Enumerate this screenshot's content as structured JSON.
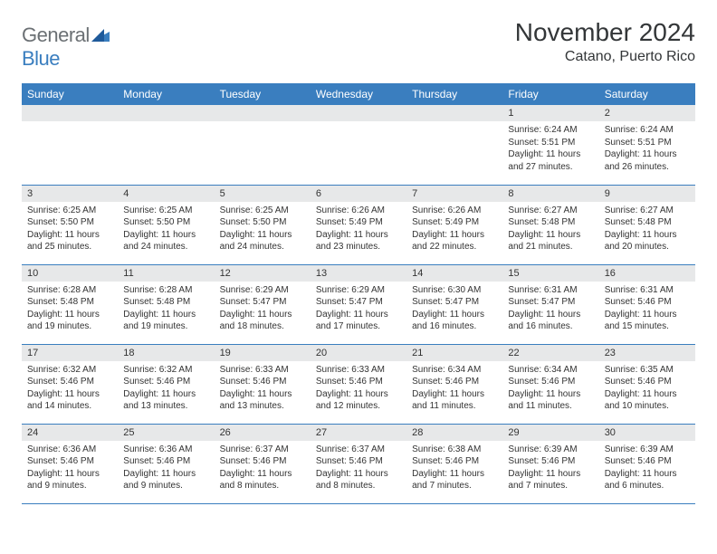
{
  "logo": {
    "part1": "General",
    "part2": "Blue"
  },
  "title": "November 2024",
  "location": "Catano, Puerto Rico",
  "colors": {
    "header_bg": "#3a7ebf",
    "header_fg": "#ffffff",
    "daynum_bg": "#e7e8e9",
    "border": "#3a7ebf",
    "logo_gray": "#6b7074",
    "logo_blue": "#3a7ebf"
  },
  "weekdays": [
    "Sunday",
    "Monday",
    "Tuesday",
    "Wednesday",
    "Thursday",
    "Friday",
    "Saturday"
  ],
  "weeks": [
    [
      {
        "n": "",
        "sr": "",
        "ss": "",
        "dl": ""
      },
      {
        "n": "",
        "sr": "",
        "ss": "",
        "dl": ""
      },
      {
        "n": "",
        "sr": "",
        "ss": "",
        "dl": ""
      },
      {
        "n": "",
        "sr": "",
        "ss": "",
        "dl": ""
      },
      {
        "n": "",
        "sr": "",
        "ss": "",
        "dl": ""
      },
      {
        "n": "1",
        "sr": "Sunrise: 6:24 AM",
        "ss": "Sunset: 5:51 PM",
        "dl": "Daylight: 11 hours and 27 minutes."
      },
      {
        "n": "2",
        "sr": "Sunrise: 6:24 AM",
        "ss": "Sunset: 5:51 PM",
        "dl": "Daylight: 11 hours and 26 minutes."
      }
    ],
    [
      {
        "n": "3",
        "sr": "Sunrise: 6:25 AM",
        "ss": "Sunset: 5:50 PM",
        "dl": "Daylight: 11 hours and 25 minutes."
      },
      {
        "n": "4",
        "sr": "Sunrise: 6:25 AM",
        "ss": "Sunset: 5:50 PM",
        "dl": "Daylight: 11 hours and 24 minutes."
      },
      {
        "n": "5",
        "sr": "Sunrise: 6:25 AM",
        "ss": "Sunset: 5:50 PM",
        "dl": "Daylight: 11 hours and 24 minutes."
      },
      {
        "n": "6",
        "sr": "Sunrise: 6:26 AM",
        "ss": "Sunset: 5:49 PM",
        "dl": "Daylight: 11 hours and 23 minutes."
      },
      {
        "n": "7",
        "sr": "Sunrise: 6:26 AM",
        "ss": "Sunset: 5:49 PM",
        "dl": "Daylight: 11 hours and 22 minutes."
      },
      {
        "n": "8",
        "sr": "Sunrise: 6:27 AM",
        "ss": "Sunset: 5:48 PM",
        "dl": "Daylight: 11 hours and 21 minutes."
      },
      {
        "n": "9",
        "sr": "Sunrise: 6:27 AM",
        "ss": "Sunset: 5:48 PM",
        "dl": "Daylight: 11 hours and 20 minutes."
      }
    ],
    [
      {
        "n": "10",
        "sr": "Sunrise: 6:28 AM",
        "ss": "Sunset: 5:48 PM",
        "dl": "Daylight: 11 hours and 19 minutes."
      },
      {
        "n": "11",
        "sr": "Sunrise: 6:28 AM",
        "ss": "Sunset: 5:48 PM",
        "dl": "Daylight: 11 hours and 19 minutes."
      },
      {
        "n": "12",
        "sr": "Sunrise: 6:29 AM",
        "ss": "Sunset: 5:47 PM",
        "dl": "Daylight: 11 hours and 18 minutes."
      },
      {
        "n": "13",
        "sr": "Sunrise: 6:29 AM",
        "ss": "Sunset: 5:47 PM",
        "dl": "Daylight: 11 hours and 17 minutes."
      },
      {
        "n": "14",
        "sr": "Sunrise: 6:30 AM",
        "ss": "Sunset: 5:47 PM",
        "dl": "Daylight: 11 hours and 16 minutes."
      },
      {
        "n": "15",
        "sr": "Sunrise: 6:31 AM",
        "ss": "Sunset: 5:47 PM",
        "dl": "Daylight: 11 hours and 16 minutes."
      },
      {
        "n": "16",
        "sr": "Sunrise: 6:31 AM",
        "ss": "Sunset: 5:46 PM",
        "dl": "Daylight: 11 hours and 15 minutes."
      }
    ],
    [
      {
        "n": "17",
        "sr": "Sunrise: 6:32 AM",
        "ss": "Sunset: 5:46 PM",
        "dl": "Daylight: 11 hours and 14 minutes."
      },
      {
        "n": "18",
        "sr": "Sunrise: 6:32 AM",
        "ss": "Sunset: 5:46 PM",
        "dl": "Daylight: 11 hours and 13 minutes."
      },
      {
        "n": "19",
        "sr": "Sunrise: 6:33 AM",
        "ss": "Sunset: 5:46 PM",
        "dl": "Daylight: 11 hours and 13 minutes."
      },
      {
        "n": "20",
        "sr": "Sunrise: 6:33 AM",
        "ss": "Sunset: 5:46 PM",
        "dl": "Daylight: 11 hours and 12 minutes."
      },
      {
        "n": "21",
        "sr": "Sunrise: 6:34 AM",
        "ss": "Sunset: 5:46 PM",
        "dl": "Daylight: 11 hours and 11 minutes."
      },
      {
        "n": "22",
        "sr": "Sunrise: 6:34 AM",
        "ss": "Sunset: 5:46 PM",
        "dl": "Daylight: 11 hours and 11 minutes."
      },
      {
        "n": "23",
        "sr": "Sunrise: 6:35 AM",
        "ss": "Sunset: 5:46 PM",
        "dl": "Daylight: 11 hours and 10 minutes."
      }
    ],
    [
      {
        "n": "24",
        "sr": "Sunrise: 6:36 AM",
        "ss": "Sunset: 5:46 PM",
        "dl": "Daylight: 11 hours and 9 minutes."
      },
      {
        "n": "25",
        "sr": "Sunrise: 6:36 AM",
        "ss": "Sunset: 5:46 PM",
        "dl": "Daylight: 11 hours and 9 minutes."
      },
      {
        "n": "26",
        "sr": "Sunrise: 6:37 AM",
        "ss": "Sunset: 5:46 PM",
        "dl": "Daylight: 11 hours and 8 minutes."
      },
      {
        "n": "27",
        "sr": "Sunrise: 6:37 AM",
        "ss": "Sunset: 5:46 PM",
        "dl": "Daylight: 11 hours and 8 minutes."
      },
      {
        "n": "28",
        "sr": "Sunrise: 6:38 AM",
        "ss": "Sunset: 5:46 PM",
        "dl": "Daylight: 11 hours and 7 minutes."
      },
      {
        "n": "29",
        "sr": "Sunrise: 6:39 AM",
        "ss": "Sunset: 5:46 PM",
        "dl": "Daylight: 11 hours and 7 minutes."
      },
      {
        "n": "30",
        "sr": "Sunrise: 6:39 AM",
        "ss": "Sunset: 5:46 PM",
        "dl": "Daylight: 11 hours and 6 minutes."
      }
    ]
  ]
}
